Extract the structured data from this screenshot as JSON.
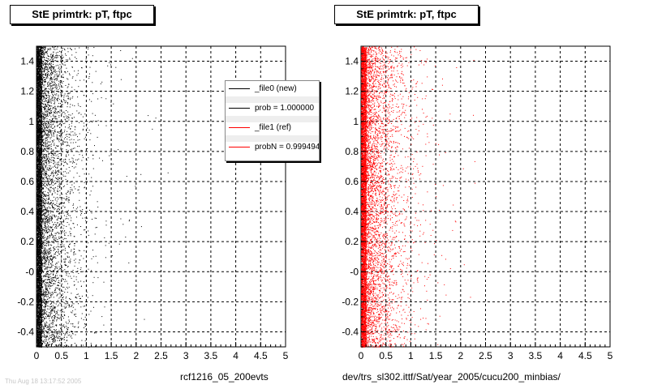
{
  "panels": [
    {
      "title": "StE primtrk: pT, ftpc",
      "footer": "rcf1216_05_200evts"
    },
    {
      "title": "StE primtrk: pT, ftpc",
      "footer": "dev/trs_sl302.ittf/Sat/year_2005/cucu200_minbias/"
    }
  ],
  "legend": {
    "entries": [
      {
        "label": "_file0 (new)",
        "color": "#000000"
      },
      {
        "label": "prob = 1.000000",
        "color": "#000000"
      },
      {
        "label": "_file1 (ref)",
        "color": "#ff0000"
      },
      {
        "label": "probN = 0.999494",
        "color": "#ff0000"
      }
    ]
  },
  "corner_text": "Thu Aug 18 13:17:52 2005",
  "chart_data": [
    {
      "type": "scatter",
      "title": "StE primtrk: pT, ftpc",
      "xlabel": "rcf1216_05_200evts",
      "ylabel": "",
      "xlim": [
        0,
        5
      ],
      "ylim": [
        -0.5,
        1.5
      ],
      "xticks": [
        "0",
        "0.5",
        "1",
        "1.5",
        "2",
        "2.5",
        "3",
        "3.5",
        "4",
        "4.5",
        "5"
      ],
      "yticks": [
        "-0.4",
        "-0.2",
        "-0",
        "0.2",
        "0.4",
        "0.6",
        "0.8",
        "1",
        "1.2",
        "1.4"
      ],
      "grid": true,
      "series": [
        {
          "name": "_file0 (new)",
          "color": "#000000",
          "distribution": {
            "x_dense_max": 0.1,
            "x_scale": 0.28,
            "x_max": 4.9,
            "y_min": -0.5,
            "y_max": 1.5
          }
        }
      ]
    },
    {
      "type": "scatter",
      "title": "StE primtrk: pT, ftpc",
      "xlabel": "dev/trs_sl302.ittf/Sat/year_2005/cucu200_minbias/",
      "ylabel": "",
      "xlim": [
        0,
        5
      ],
      "ylim": [
        -0.5,
        1.5
      ],
      "xticks": [
        "0",
        "0.5",
        "1",
        "1.5",
        "2",
        "2.5",
        "3",
        "3.5",
        "4",
        "4.5",
        "5"
      ],
      "yticks": [
        "-0.4",
        "-0.2",
        "-0",
        "0.2",
        "0.4",
        "0.6",
        "0.8",
        "1",
        "1.2",
        "1.4"
      ],
      "grid": true,
      "series": [
        {
          "name": "_file1 (ref)",
          "color": "#ff0000",
          "distribution": {
            "x_dense_max": 0.1,
            "x_scale": 0.3,
            "x_max": 4.9,
            "y_min": -0.5,
            "y_max": 1.5
          }
        }
      ]
    }
  ]
}
